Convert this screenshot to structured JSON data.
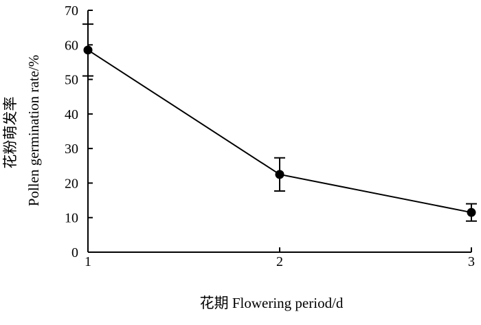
{
  "chart_data": {
    "type": "line",
    "title": "",
    "xlabel": "花期 Flowering period/d",
    "ylabel_line1": "花粉萌发率",
    "ylabel_line2": "Pollen germination rate/%",
    "x": [
      1,
      2,
      3
    ],
    "xticks": [
      "1",
      "2",
      "3"
    ],
    "yticks": [
      "0",
      "10",
      "20",
      "30",
      "40",
      "50",
      "60",
      "70"
    ],
    "ylim": [
      0,
      70
    ],
    "grid": false,
    "series": [
      {
        "values": [
          58.5,
          22.5,
          11.5
        ],
        "error": [
          7.5,
          4.8,
          2.5
        ]
      }
    ],
    "colors": {
      "line": "#000000",
      "marker": "#000000"
    }
  }
}
